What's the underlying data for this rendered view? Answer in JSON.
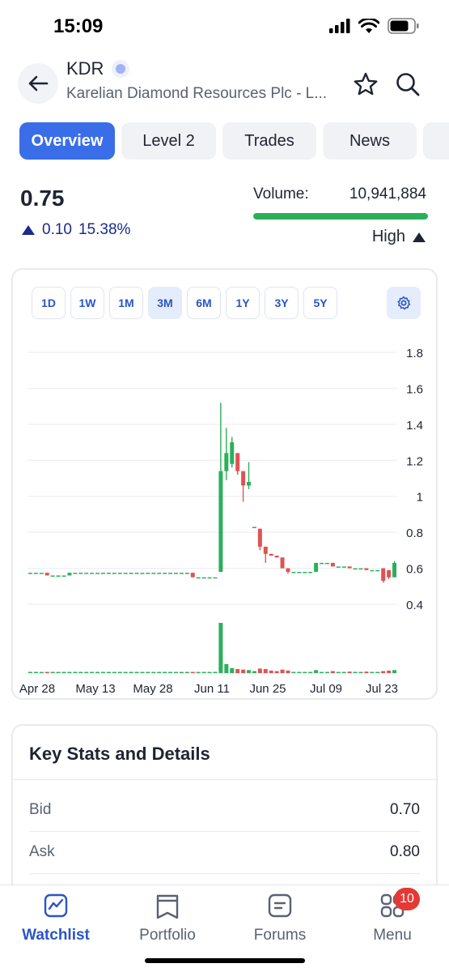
{
  "status_bar": {
    "time": "15:09"
  },
  "header": {
    "ticker": "KDR",
    "company": "Karelian Diamond Resources Plc - L..."
  },
  "tabs": [
    {
      "label": "Overview",
      "active": true
    },
    {
      "label": "Level 2",
      "active": false
    },
    {
      "label": "Trades",
      "active": false
    },
    {
      "label": "News",
      "active": false
    },
    {
      "label": "",
      "active": false
    }
  ],
  "quote": {
    "price": "0.75",
    "change": "0.10",
    "change_pct": "15.38%",
    "volume_label": "Volume:",
    "volume_value": "10,941,884",
    "volume_level": "High",
    "volume_bar_fraction": 1.0
  },
  "chart": {
    "ranges": [
      {
        "label": "1D",
        "active": false
      },
      {
        "label": "1W",
        "active": false
      },
      {
        "label": "1M",
        "active": false
      },
      {
        "label": "3M",
        "active": true
      },
      {
        "label": "6M",
        "active": false
      },
      {
        "label": "1Y",
        "active": false
      },
      {
        "label": "3Y",
        "active": false
      },
      {
        "label": "5Y",
        "active": false
      }
    ]
  },
  "chart_data": {
    "type": "candlestick",
    "y_ticks": [
      "1.8",
      "1.6",
      "1.4",
      "1.2",
      "1",
      "0.8",
      "0.6",
      "0.4"
    ],
    "ylim": [
      0.4,
      1.8
    ],
    "x_ticks": [
      "Apr 28",
      "May 13",
      "May 28",
      "Jun 11",
      "Jun 25",
      "Jul 09",
      "Jul 23"
    ],
    "grid": true,
    "colors": {
      "up": "#2bb05a",
      "down": "#e05252",
      "grid": "#e9ebef"
    },
    "candles": [
      {
        "o": 0.575,
        "h": 0.575,
        "l": 0.575,
        "c": 0.575,
        "v": 0.004
      },
      {
        "o": 0.575,
        "h": 0.575,
        "l": 0.575,
        "c": 0.575,
        "v": 0.003
      },
      {
        "o": 0.575,
        "h": 0.575,
        "l": 0.575,
        "c": 0.575,
        "v": 0.003
      },
      {
        "o": 0.575,
        "h": 0.575,
        "l": 0.56,
        "c": 0.56,
        "v": 0.02
      },
      {
        "o": 0.56,
        "h": 0.56,
        "l": 0.56,
        "c": 0.56,
        "v": 0.003
      },
      {
        "o": 0.56,
        "h": 0.56,
        "l": 0.56,
        "c": 0.56,
        "v": 0.003
      },
      {
        "o": 0.56,
        "h": 0.56,
        "l": 0.56,
        "c": 0.56,
        "v": 0.003
      },
      {
        "o": 0.56,
        "h": 0.575,
        "l": 0.56,
        "c": 0.575,
        "v": 0.01
      },
      {
        "o": 0.575,
        "h": 0.575,
        "l": 0.575,
        "c": 0.575,
        "v": 0.003
      },
      {
        "o": 0.575,
        "h": 0.575,
        "l": 0.575,
        "c": 0.575,
        "v": 0.003
      },
      {
        "o": 0.575,
        "h": 0.575,
        "l": 0.575,
        "c": 0.575,
        "v": 0.003
      },
      {
        "o": 0.575,
        "h": 0.575,
        "l": 0.575,
        "c": 0.575,
        "v": 0.003
      },
      {
        "o": 0.575,
        "h": 0.575,
        "l": 0.575,
        "c": 0.575,
        "v": 0.003
      },
      {
        "o": 0.575,
        "h": 0.575,
        "l": 0.575,
        "c": 0.575,
        "v": 0.003
      },
      {
        "o": 0.575,
        "h": 0.575,
        "l": 0.575,
        "c": 0.575,
        "v": 0.003
      },
      {
        "o": 0.575,
        "h": 0.575,
        "l": 0.575,
        "c": 0.575,
        "v": 0.003
      },
      {
        "o": 0.575,
        "h": 0.575,
        "l": 0.575,
        "c": 0.575,
        "v": 0.003
      },
      {
        "o": 0.575,
        "h": 0.575,
        "l": 0.575,
        "c": 0.575,
        "v": 0.003
      },
      {
        "o": 0.575,
        "h": 0.575,
        "l": 0.575,
        "c": 0.575,
        "v": 0.003
      },
      {
        "o": 0.575,
        "h": 0.575,
        "l": 0.575,
        "c": 0.575,
        "v": 0.003
      },
      {
        "o": 0.575,
        "h": 0.575,
        "l": 0.575,
        "c": 0.575,
        "v": 0.003
      },
      {
        "o": 0.575,
        "h": 0.575,
        "l": 0.575,
        "c": 0.575,
        "v": 0.003
      },
      {
        "o": 0.575,
        "h": 0.575,
        "l": 0.575,
        "c": 0.575,
        "v": 0.003
      },
      {
        "o": 0.575,
        "h": 0.575,
        "l": 0.575,
        "c": 0.575,
        "v": 0.003
      },
      {
        "o": 0.575,
        "h": 0.575,
        "l": 0.575,
        "c": 0.575,
        "v": 0.003
      },
      {
        "o": 0.575,
        "h": 0.575,
        "l": 0.575,
        "c": 0.575,
        "v": 0.003
      },
      {
        "o": 0.575,
        "h": 0.575,
        "l": 0.575,
        "c": 0.575,
        "v": 0.003
      },
      {
        "o": 0.575,
        "h": 0.575,
        "l": 0.575,
        "c": 0.575,
        "v": 0.003
      },
      {
        "o": 0.575,
        "h": 0.575,
        "l": 0.575,
        "c": 0.575,
        "v": 0.003
      },
      {
        "o": 0.575,
        "h": 0.575,
        "l": 0.55,
        "c": 0.55,
        "v": 0.02
      },
      {
        "o": 0.55,
        "h": 0.55,
        "l": 0.55,
        "c": 0.55,
        "v": 0.003
      },
      {
        "o": 0.55,
        "h": 0.55,
        "l": 0.55,
        "c": 0.55,
        "v": 0.003
      },
      {
        "o": 0.55,
        "h": 0.55,
        "l": 0.55,
        "c": 0.55,
        "v": 0.003
      },
      {
        "o": 0.55,
        "h": 0.55,
        "l": 0.55,
        "c": 0.55,
        "v": 0.003
      },
      {
        "o": 0.58,
        "h": 1.52,
        "l": 0.58,
        "c": 1.14,
        "v": 1.0
      },
      {
        "o": 1.14,
        "h": 1.38,
        "l": 1.09,
        "c": 1.24,
        "v": 0.18
      },
      {
        "o": 1.18,
        "h": 1.33,
        "l": 1.16,
        "c": 1.3,
        "v": 0.1
      },
      {
        "o": 1.24,
        "h": 1.24,
        "l": 1.12,
        "c": 1.14,
        "v": 0.08
      },
      {
        "o": 1.14,
        "h": 1.14,
        "l": 0.97,
        "c": 1.06,
        "v": 0.07
      },
      {
        "o": 1.06,
        "h": 1.19,
        "l": 1.04,
        "c": 1.08,
        "v": 0.06
      },
      {
        "o": 0.83,
        "h": 0.83,
        "l": 0.83,
        "c": 0.83,
        "v": 0.04
      },
      {
        "o": 0.82,
        "h": 0.82,
        "l": 0.7,
        "c": 0.72,
        "v": 0.09
      },
      {
        "o": 0.72,
        "h": 0.72,
        "l": 0.63,
        "c": 0.68,
        "v": 0.08
      },
      {
        "o": 0.68,
        "h": 0.68,
        "l": 0.67,
        "c": 0.67,
        "v": 0.05
      },
      {
        "o": 0.67,
        "h": 0.67,
        "l": 0.66,
        "c": 0.66,
        "v": 0.04
      },
      {
        "o": 0.66,
        "h": 0.66,
        "l": 0.6,
        "c": 0.6,
        "v": 0.07
      },
      {
        "o": 0.6,
        "h": 0.6,
        "l": 0.57,
        "c": 0.58,
        "v": 0.05
      },
      {
        "o": 0.58,
        "h": 0.58,
        "l": 0.58,
        "c": 0.58,
        "v": 0.02
      },
      {
        "o": 0.58,
        "h": 0.58,
        "l": 0.58,
        "c": 0.58,
        "v": 0.02
      },
      {
        "o": 0.58,
        "h": 0.58,
        "l": 0.58,
        "c": 0.58,
        "v": 0.02
      },
      {
        "o": 0.58,
        "h": 0.58,
        "l": 0.58,
        "c": 0.58,
        "v": 0.02
      },
      {
        "o": 0.58,
        "h": 0.63,
        "l": 0.58,
        "c": 0.63,
        "v": 0.06
      },
      {
        "o": 0.63,
        "h": 0.63,
        "l": 0.63,
        "c": 0.63,
        "v": 0.02
      },
      {
        "o": 0.63,
        "h": 0.63,
        "l": 0.63,
        "c": 0.63,
        "v": 0.02
      },
      {
        "o": 0.63,
        "h": 0.63,
        "l": 0.61,
        "c": 0.61,
        "v": 0.04
      },
      {
        "o": 0.61,
        "h": 0.61,
        "l": 0.61,
        "c": 0.61,
        "v": 0.02
      },
      {
        "o": 0.61,
        "h": 0.61,
        "l": 0.61,
        "c": 0.61,
        "v": 0.02
      },
      {
        "o": 0.61,
        "h": 0.61,
        "l": 0.6,
        "c": 0.6,
        "v": 0.03
      },
      {
        "o": 0.6,
        "h": 0.6,
        "l": 0.6,
        "c": 0.6,
        "v": 0.02
      },
      {
        "o": 0.6,
        "h": 0.6,
        "l": 0.6,
        "c": 0.6,
        "v": 0.02
      },
      {
        "o": 0.6,
        "h": 0.6,
        "l": 0.59,
        "c": 0.59,
        "v": 0.03
      },
      {
        "o": 0.59,
        "h": 0.59,
        "l": 0.59,
        "c": 0.59,
        "v": 0.02
      },
      {
        "o": 0.59,
        "h": 0.59,
        "l": 0.59,
        "c": 0.59,
        "v": 0.02
      },
      {
        "o": 0.6,
        "h": 0.6,
        "l": 0.52,
        "c": 0.53,
        "v": 0.04
      },
      {
        "o": 0.59,
        "h": 0.59,
        "l": 0.54,
        "c": 0.55,
        "v": 0.05
      },
      {
        "o": 0.55,
        "h": 0.64,
        "l": 0.55,
        "c": 0.63,
        "v": 0.06
      }
    ]
  },
  "stats": {
    "title": "Key Stats and Details",
    "rows": [
      {
        "label": "Bid",
        "value": "0.70"
      },
      {
        "label": "Ask",
        "value": "0.80"
      }
    ]
  },
  "nav": {
    "items": [
      {
        "label": "Watchlist",
        "active": true
      },
      {
        "label": "Portfolio",
        "active": false
      },
      {
        "label": "Forums",
        "active": false
      },
      {
        "label": "Menu",
        "active": false
      }
    ],
    "menu_badge": "10"
  }
}
